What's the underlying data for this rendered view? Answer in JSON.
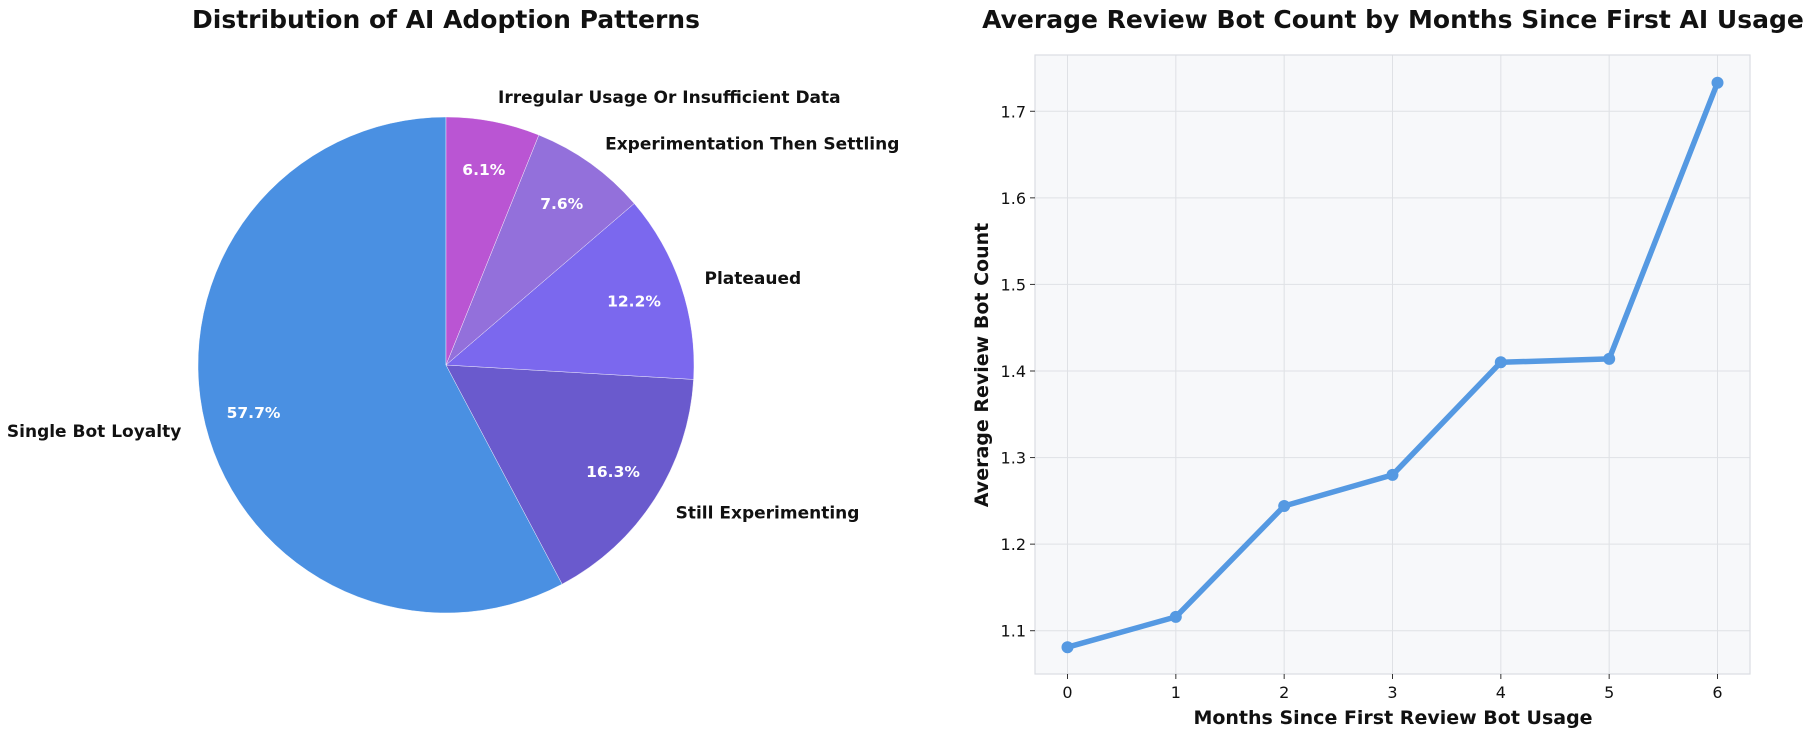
{
  "chart_data": [
    {
      "type": "pie",
      "title": "Distribution of AI Adoption Patterns",
      "start_angle_deg": 90,
      "direction": "counterclockwise",
      "slices": [
        {
          "label": "Single Bot Loyalty",
          "value": 57.7,
          "pct_label": "57.7%",
          "color": "#4A90E2"
        },
        {
          "label": "Still Experimenting",
          "value": 16.3,
          "pct_label": "16.3%",
          "color": "#6A5ACD"
        },
        {
          "label": "Plateaued",
          "value": 12.2,
          "pct_label": "12.2%",
          "color": "#7B68EE"
        },
        {
          "label": "Experimentation Then Settling",
          "value": 7.6,
          "pct_label": "7.6%",
          "color": "#9370DB"
        },
        {
          "label": "Irregular Usage Or Insufficient Data",
          "value": 6.1,
          "pct_label": "6.1%",
          "color": "#BA55D3"
        }
      ]
    },
    {
      "type": "line",
      "title": "Average Review Bot Count by Months Since First AI Usage",
      "xlabel": "Months Since First Review Bot Usage",
      "ylabel": "Average Review Bot Count",
      "x": [
        0,
        1,
        2,
        3,
        4,
        5,
        6
      ],
      "series": [
        {
          "values": [
            1.081,
            1.116,
            1.244,
            1.28,
            1.41,
            1.414,
            1.733
          ],
          "color": "#5599E2"
        }
      ],
      "xlim": [
        -0.3,
        6.3
      ],
      "ylim": [
        1.05,
        1.765
      ],
      "xticks": [
        0,
        1,
        2,
        3,
        4,
        5,
        6
      ],
      "yticks": [
        1.1,
        1.2,
        1.3,
        1.4,
        1.5,
        1.6,
        1.7
      ],
      "grid": true,
      "background": "#F7F8FA"
    }
  ]
}
